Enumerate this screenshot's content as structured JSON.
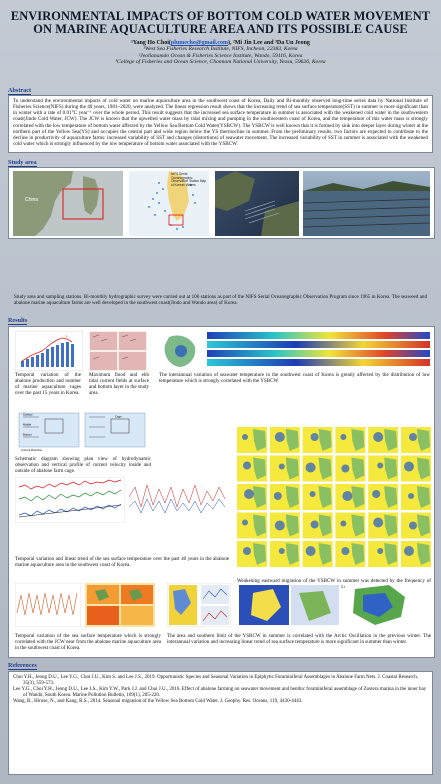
{
  "poster": {
    "title": "ENVIRONMENTAL IMPACTS OF BOTTOM COLD WATER MOVEMENT ON MARINE AQUACULTURE AREA AND ITS POSSIBLE CAUSE",
    "author_line_pre": "¹Yang Ho Choi(",
    "author_email": "plumecho@gmail.com",
    "author_line_post": "), ²Mi Jin Lee and ³Da Un Jeong",
    "affiliations": [
      "¹West Sea Fisheries Research Institute, NIFS, Incheon, 22383, Korea",
      "²Jeollanamdo Ocean & Fisheries Science Institute, Wando, 59116, Korea",
      "³College of Fisheries and Ocean Science, Chonnam National University, Yeosu, 59626, Korea"
    ]
  },
  "abstract": {
    "heading": "Abstract",
    "text": "To understand the environmental impacts of cold water on marine aquaculture area in the southwest coast of Korea, Daily and Bi-monthly observed long-time series data by National Institute of Fisheries Science(NIFS) during the 40 years, 1981~2020, were analyzed. The linear regression result shows that the increasing trend of sea surface temperature(SST) in summer is more significant than in winter with a rate of 0.01°C year⁻¹ over the whole period. This result suggests that the increased sea surface temperature in summer is associated with the weakened cold water in the southwestern coast(Jindo Cold Water, JCW). The JCW is known that the upwelled water mass by tidal mixing and pumping in the southwestern coast of Korea, and the temperature of this water mass is strongly correlated with the low temperature of bottom water affected by the Yellow Sea Bottom Cold Water(YSBCW). The YSBCW is well known that it is formed by sink into deeper layer during winter at the northern part of the Yellow Sea(YS) and occupies the central part and wide region below the YS thermocline in summer. From the preliminary results, two factors are expected to contribute to the decline in productivity of aquaculture farms: increased variability of SST and changes (distortions) of seawater movement. The increased variability of SST in summer is associated with the weakened cold water which is strongly influenced by the low temperature of bottom water associated with the YSBCW."
  },
  "study": {
    "heading": "Study area",
    "map_label": "NIFS Serial Oceanographic Observation Station Map of Korean Waters",
    "china_label": "China",
    "caption": "Study area and sampling stations. Bi-monthly hydrographic survey were carried out at 106 stations as part of the NIFS Serial Oceanographic Observation Program since 1965 in Korea. The seaweed and abalone marine aquaculture farms are well developed in the southwest coast(Jindo and Wando area) of Korea."
  },
  "results": {
    "heading": "Results",
    "captions": {
      "abalone": "Temporal variation of the abalone production and number of marine aquaculture cages over the past 15 years in Korea.",
      "tidal": "Maximum flood and ebb tidal current fields at surface and bottom layer in the study area.",
      "interannual": "The interannual variation of seawater temperature in the southwest coast of Korea is greatly affected by the distribution of low temperature which is strongly correlated with the YSBCW.",
      "schematic": "Schematic diagram showing plan view of hydrodynamic observation and vertical profile of current velocity inside and outside of abalone farm cage.",
      "sst_trend": "Temporal variation and linear trend of the sea surface temperature over the past 40 years in the abalone marine aquaculture area in the southwest coast of Korea.",
      "weakening": "Weakening eastward migration of the YSBCW in summer was detected by the frequency of low temperature(11℃) water in the southwest coast of Korea from 1981 to 2020.",
      "sst_time": "Temporal variation of the sea surface temperature which is strongly correlated with the JCW near from the abalone marine aquaculture area in the southwest coast of Korea.",
      "arctic": "The area and southern limit of the YSBCW in summer is correlated with the Arctic Oscillation in the previous winter. The interannual variation and increasing linear trend of sea surface temperature is more significant in summer than winter."
    },
    "schematic_labels": [
      "Surface",
      "Middle",
      "Bottom",
      "Current Direction",
      "Cage"
    ]
  },
  "references": {
    "heading": "References",
    "items": [
      "Choi Y.H., Jeong D.U., Lee Y.G., Choi J.U., Kim S. and Lee J.S., 2019. Opportunistic Species and Seasonal Variation in Epiphytic Foraminiferal Assemblages in Abalone Farm Nets. J. Coastal Research, 35(3), 559-573.",
      "Lee Y.G., Choi Y.H., Jeong D.U., Lee J.S., Kim Y.W., Park J.J. and Choi J.U., 2016. Effect of abalone farming on seawater movement and benthic foraminiferal assemblage of Zostera marina in the inner bay of Wando, South Korea. Marine Pollution Bulletin, 109(1), 205-220.",
      "Wang, B., Hirose, N., and Kang, B.S., 2014. Seasonal migration of the Yellow Sea Bottom Cold Water. J. Geophy. Res. Oceans, 119, 4430-4443."
    ]
  }
}
